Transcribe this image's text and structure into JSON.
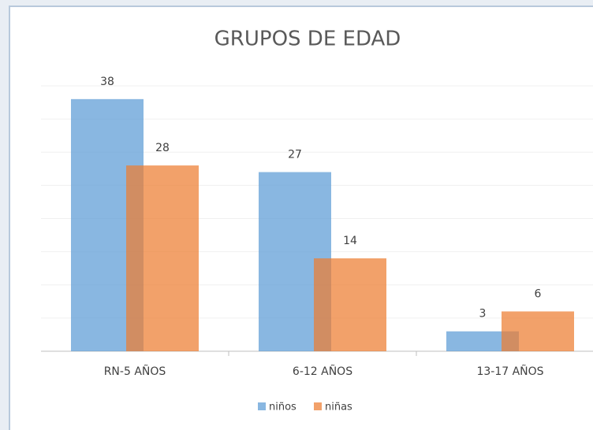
{
  "chart_data": {
    "type": "bar",
    "title": "GRUPOS DE EDAD",
    "categories": [
      "RN-5 AÑOS",
      "6-12 AÑOS",
      "13-17 AÑOS"
    ],
    "series": [
      {
        "name": "niños",
        "color": "#5b9bd5",
        "values": [
          38,
          27,
          3
        ]
      },
      {
        "name": "niñas",
        "color": "#ed7d31",
        "values": [
          28,
          14,
          6
        ]
      }
    ],
    "ylim": [
      0,
      40
    ],
    "yticks": [
      0,
      5,
      10,
      15,
      20,
      25,
      30,
      35,
      40
    ],
    "grid": true,
    "legend": "bottom"
  }
}
